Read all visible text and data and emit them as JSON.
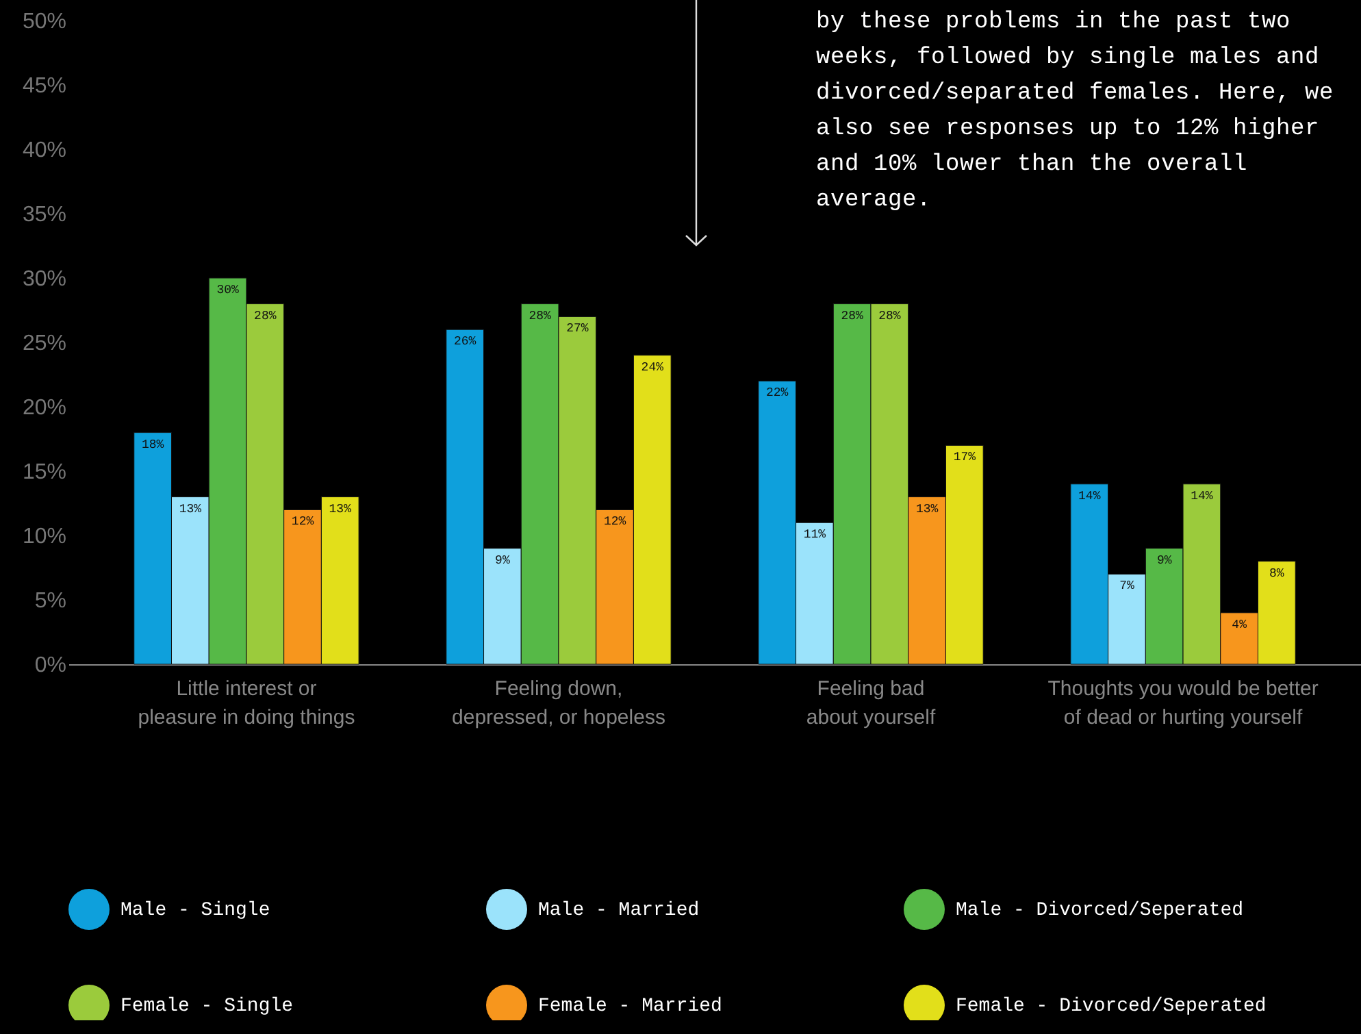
{
  "chart_data": {
    "type": "bar",
    "categories": [
      "Little interest or pleasure in doing things",
      "Feeling down, depressed, or hopeless",
      "Feeling bad about yourself",
      "Thoughts you would be better of dead or hurting yourself"
    ],
    "series": [
      {
        "name": "Male - Single",
        "color": "#0ea0dc",
        "values": [
          18,
          26,
          22,
          14
        ],
        "value_labels": [
          "18%",
          "26%",
          "22%",
          "14%"
        ]
      },
      {
        "name": "Male - Married",
        "color": "#9be3fb",
        "values": [
          13,
          9,
          11,
          7
        ],
        "value_labels": [
          "13%",
          "9%",
          "11%",
          "7%"
        ]
      },
      {
        "name": "Male - Divorced/Seperated",
        "color": "#56b947",
        "values": [
          30,
          28,
          28,
          9
        ],
        "value_labels": [
          "30%",
          "28%",
          "28%",
          "9%"
        ]
      },
      {
        "name": "Female - Single",
        "color": "#9bcb3c",
        "values": [
          28,
          27,
          28,
          14
        ],
        "value_labels": [
          "28%",
          "27%",
          "28%",
          "14%"
        ]
      },
      {
        "name": "Female - Married",
        "color": "#f7961d",
        "values": [
          12,
          12,
          13,
          4
        ],
        "value_labels": [
          "12%",
          "12%",
          "13%",
          "4%"
        ]
      },
      {
        "name": "Female - Divorced/Seperated",
        "color": "#e2df1a",
        "values": [
          13,
          24,
          17,
          8
        ],
        "value_labels": [
          "13%",
          "24%",
          "17%",
          "8%"
        ]
      }
    ],
    "ylim": [
      0,
      50
    ],
    "yticks": [
      {
        "value": 0,
        "label": "0%"
      },
      {
        "value": 5,
        "label": "5%"
      },
      {
        "value": 10,
        "label": "10%"
      },
      {
        "value": 15,
        "label": "15%"
      },
      {
        "value": 20,
        "label": "20%"
      },
      {
        "value": 25,
        "label": "25%"
      },
      {
        "value": 30,
        "label": "30%"
      },
      {
        "value": 35,
        "label": "35%"
      },
      {
        "value": 40,
        "label": "40%"
      },
      {
        "value": 45,
        "label": "45%"
      },
      {
        "value": 50,
        "label": "50%"
      }
    ],
    "grid": false,
    "legend": "bottom",
    "annotations": [
      "by these problems in the past two weeks, followed by single males and divorced/separated females. Here, we also see responses up to 12% higher and 10% lower than the overall average."
    ]
  }
}
